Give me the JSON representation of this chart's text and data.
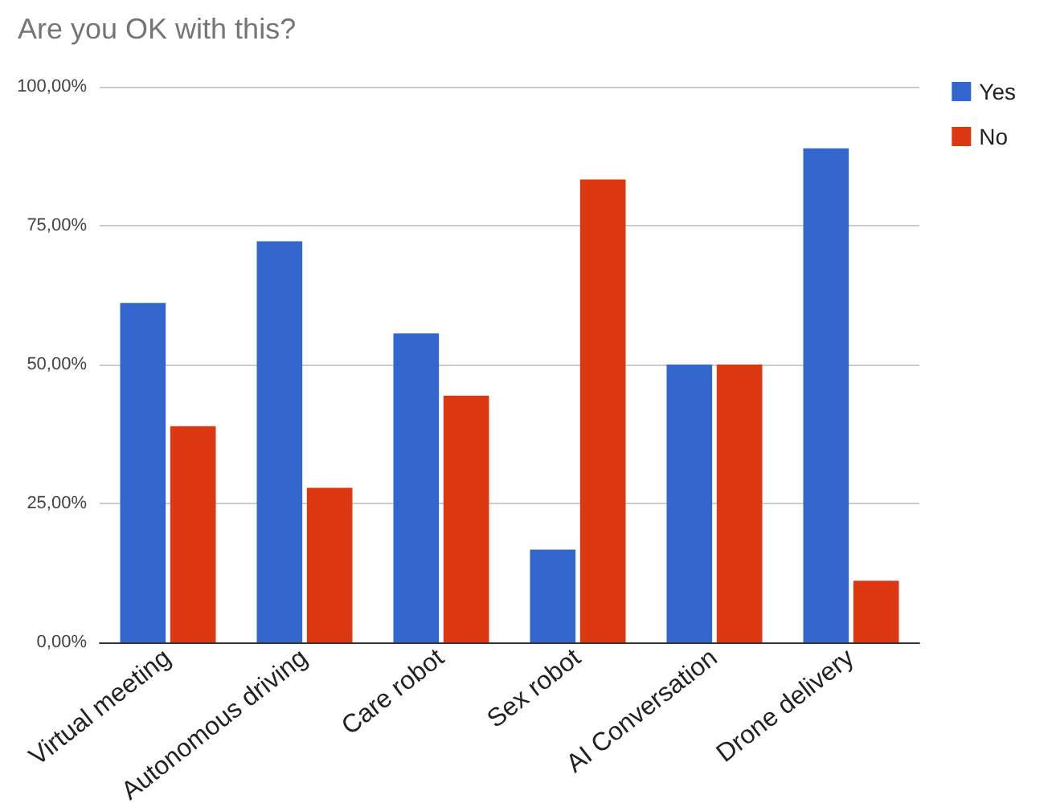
{
  "chart_data": {
    "type": "bar",
    "title": "Are you OK with this?",
    "categories": [
      "Virtual meeting",
      "Autonomous driving",
      "Care robot",
      "Sex robot",
      "AI Conversation",
      "Drone delivery"
    ],
    "series": [
      {
        "name": "Yes",
        "color": "#3366cc",
        "values": [
          61.1,
          72.2,
          55.6,
          16.7,
          50,
          88.9
        ]
      },
      {
        "name": "No",
        "color": "#dc3912",
        "values": [
          38.9,
          27.8,
          44.4,
          83.3,
          50,
          11.1
        ]
      }
    ],
    "ylim": [
      0,
      100
    ],
    "yticks": [
      {
        "value": 0,
        "label": "0,00%"
      },
      {
        "value": 25,
        "label": "25,00%"
      },
      {
        "value": 50,
        "label": "50,00%"
      },
      {
        "value": 75,
        "label": "75,00%"
      },
      {
        "value": 100,
        "label": "100,00%"
      }
    ],
    "grid": "y",
    "legend": "top right"
  }
}
